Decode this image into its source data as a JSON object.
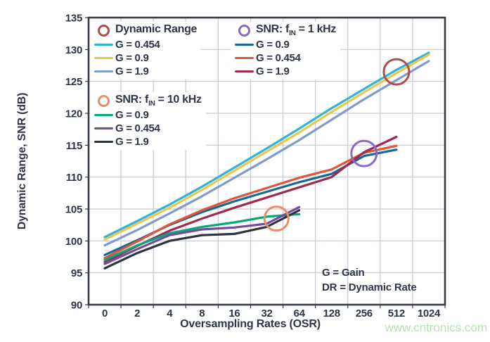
{
  "chart_data": {
    "type": "line",
    "xlabel": "Oversampling Rates (OSR)",
    "ylabel": "Dynamic Range, SNR (dB)",
    "x_categories": [
      "0",
      "2",
      "4",
      "8",
      "16",
      "32",
      "64",
      "128",
      "256",
      "512",
      "1024"
    ],
    "x_scale": "log2-categorical",
    "ylim": [
      90,
      135
    ],
    "ytick_step": 5,
    "grid": "on",
    "series": [
      {
        "group": "Dynamic Range",
        "name": "G = 0.454",
        "color": "#2cb5da",
        "values": [
          100.6,
          103.1,
          105.7,
          108.5,
          111.5,
          114.5,
          117.6,
          120.8,
          123.8,
          126.8,
          129.5
        ]
      },
      {
        "group": "Dynamic Range",
        "name": "G = 0.9",
        "color": "#f4c34a",
        "values": [
          100.2,
          102.7,
          105.2,
          108.0,
          111.0,
          114.0,
          117.0,
          120.2,
          123.3,
          126.3,
          129.2
        ]
      },
      {
        "group": "Dynamic Range",
        "name": "G = 1.9",
        "color": "#7e9ace",
        "values": [
          99.3,
          101.7,
          104.3,
          107.0,
          109.9,
          112.8,
          115.8,
          119.0,
          122.2,
          125.2,
          128.2
        ]
      },
      {
        "group": "SNR: fIN = 1 kHz",
        "name": "G = 0.9",
        "color": "#17699a",
        "values": [
          97.8,
          100.1,
          102.5,
          104.5,
          106.2,
          107.7,
          109.2,
          110.5,
          113.3,
          114.3
        ]
      },
      {
        "group": "SNR: fIN = 1 kHz",
        "name": "G = 0.454",
        "color": "#e0563a",
        "values": [
          97.3,
          99.9,
          102.6,
          104.8,
          106.7,
          108.3,
          109.9,
          111.2,
          113.8,
          114.9
        ]
      },
      {
        "group": "SNR: fIN = 1 kHz",
        "name": "G = 1.9",
        "color": "#a0294d",
        "values": [
          96.7,
          99.2,
          101.6,
          103.5,
          105.2,
          106.8,
          108.4,
          110.0,
          113.9,
          116.3
        ]
      },
      {
        "group": "SNR: fIN = 10 kHz",
        "name": "G = 0.9",
        "color": "#09a87b",
        "values": [
          97.0,
          99.3,
          101.2,
          102.2,
          102.9,
          103.8,
          104.2
        ]
      },
      {
        "group": "SNR: fIN = 10 kHz",
        "name": "G = 0.454",
        "color": "#744b9e",
        "values": [
          96.4,
          98.7,
          100.9,
          101.8,
          102.1,
          102.7,
          105.3
        ]
      },
      {
        "group": "SNR: fIN = 10 kHz",
        "name": "G = 1.9",
        "color": "#2d333f",
        "values": [
          95.7,
          98.1,
          100.0,
          100.9,
          101.1,
          102.2,
          104.8
        ]
      }
    ],
    "markers": [
      {
        "label": "Dynamic Range",
        "band_pos": 9.5,
        "db": 126.5,
        "r": 18,
        "color": "#b34c48"
      },
      {
        "label": "SNR: fIN = 1 kHz",
        "band_pos": 8.5,
        "db": 113.7,
        "r": 18,
        "color": "#8d68c4"
      },
      {
        "label": "SNR: fIN = 10 kHz",
        "band_pos": 5.8,
        "db": 103.5,
        "r": 17,
        "color": "#ee8a64"
      }
    ]
  },
  "legend": {
    "groups": [
      {
        "title_pre": "Dynamic Range",
        "title_sub": "",
        "title_post": "",
        "circle_color": "#b34c48",
        "items": [
          {
            "label": "G = 0.454",
            "color": "#2cb5da"
          },
          {
            "label": "G = 0.9",
            "color": "#f4c34a"
          },
          {
            "label": "G = 1.9",
            "color": "#7e9ace"
          }
        ]
      },
      {
        "title_pre": "SNR: f",
        "title_sub": "IN",
        "title_post": " = 1 kHz",
        "circle_color": "#8d68c4",
        "items": [
          {
            "label": "G = 0.9",
            "color": "#17699a"
          },
          {
            "label": "G = 0.454",
            "color": "#e0563a"
          },
          {
            "label": "G = 1.9",
            "color": "#a0294d"
          }
        ]
      },
      {
        "title_pre": "SNR: f",
        "title_sub": "IN",
        "title_post": " = 10 kHz",
        "circle_color": "#ee8a64",
        "items": [
          {
            "label": "G = 0.9",
            "color": "#09a87b"
          },
          {
            "label": "G = 0.454",
            "color": "#744b9e"
          },
          {
            "label": "G = 1.9",
            "color": "#2d333f"
          }
        ]
      }
    ]
  },
  "annotation": {
    "line1": "G = Gain",
    "line2": "DR = Dynamic Rate"
  },
  "watermark": {
    "text": "www.cntronics.com",
    "color": "#b9e2b4"
  },
  "colors": {
    "ink": "#2e3547",
    "grid": "#c6cad3",
    "frame": "#363c46"
  }
}
